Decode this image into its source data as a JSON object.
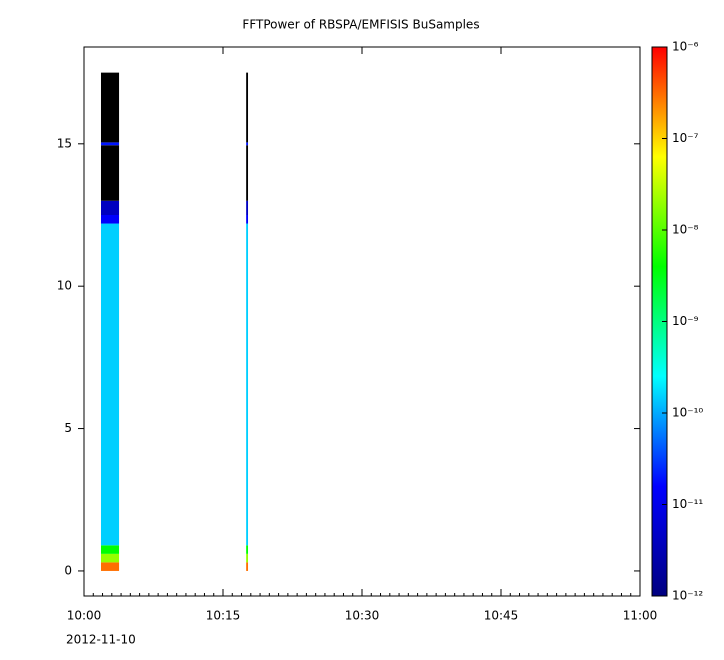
{
  "chart_data": {
    "type": "spectrogram",
    "title": "FFTPower of RBSPA/EMFISIS  BuSamples",
    "xlim": [
      "10:00",
      "11:00"
    ],
    "xticks": [
      "10:00",
      "10:15",
      "10:30",
      "10:45",
      "11:00"
    ],
    "x_date_label": "2012-11-10",
    "ylim": [
      -0.88,
      18.4
    ],
    "yticks": [
      0,
      5,
      10,
      15
    ],
    "y_bins": [
      0,
      0.3,
      0.6,
      0.9,
      12.2,
      12.5,
      13.0,
      14.95,
      15.05,
      17.5
    ],
    "columns": [
      {
        "start": "10:01:50",
        "end": "10:03:47",
        "values": [
          3e-07,
          2e-08,
          4e-09,
          1.5e-10,
          1.5e-11,
          4e-12,
          5e-13,
          2e-11,
          5e-13
        ]
      },
      {
        "start": "10:17:30",
        "end": "10:17:42",
        "values": [
          3e-07,
          2e-08,
          4e-09,
          1.5e-10,
          1.5e-11,
          4e-12,
          5e-13,
          2e-11,
          5e-13
        ]
      }
    ],
    "log_color_scale": true,
    "clim": [
      1e-12,
      1e-06
    ],
    "colormap": [
      "#000080",
      "#0000ff",
      "#00ffff",
      "#00ff00",
      "#ffff00",
      "#ff0000"
    ],
    "below_range_color": "#000000",
    "cticks": [
      {
        "value": 1e-06,
        "label": "10⁻⁶"
      },
      {
        "value": 1e-07,
        "label": "10⁻⁷"
      },
      {
        "value": 1e-08,
        "label": "10⁻⁸"
      },
      {
        "value": 1e-09,
        "label": "10⁻⁹"
      },
      {
        "value": 1e-10,
        "label": "10⁻¹⁰"
      },
      {
        "value": 1e-11,
        "label": "10⁻¹¹"
      },
      {
        "value": 1e-12,
        "label": "10⁻¹²"
      }
    ]
  }
}
